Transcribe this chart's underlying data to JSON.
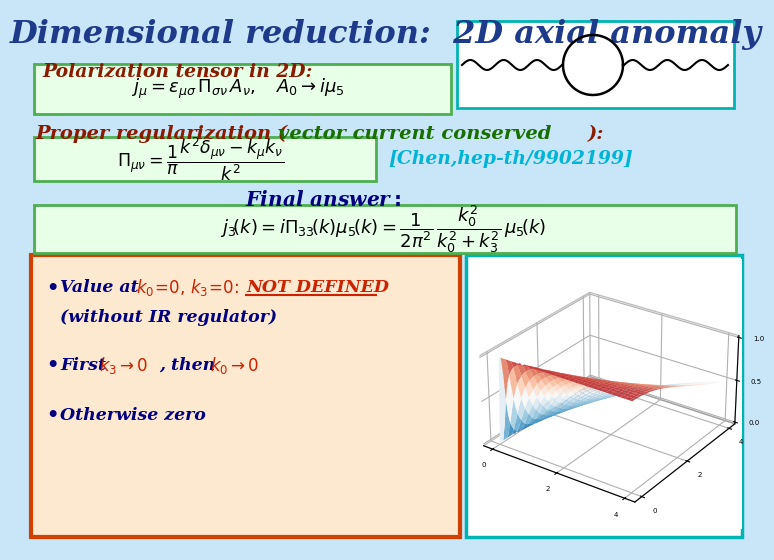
{
  "title": "Dimensional reduction:  2D axial anomaly",
  "title_color": "#1e3a8a",
  "title_fontsize": 24,
  "bg_color_top": "#c8e6f8",
  "bg_color_bottom": "#b8ddf0",
  "polarization_label": "Polarization tensor in 2D:",
  "polarization_color": "#8b1a00",
  "proper_reg_color": "#8b1a00",
  "green_highlight": "#1a6e00",
  "chen_color": "#00b4d8",
  "chen_text": "[Chen,hep-th/9902199]",
  "final_color": "#000080",
  "bullet_dark": "#000080",
  "bullet_red": "#cc2200",
  "box_green_border": "#4caf50",
  "box_green_bg": "#e8ffe8",
  "box_red_border": "#d04000",
  "box_red_bg": "#fde8d0",
  "box_teal_border": "#00b4b4",
  "box_teal_bg": "#ffffff",
  "box_white_border": "#4caf50",
  "box_white_bg": "#eeffee"
}
